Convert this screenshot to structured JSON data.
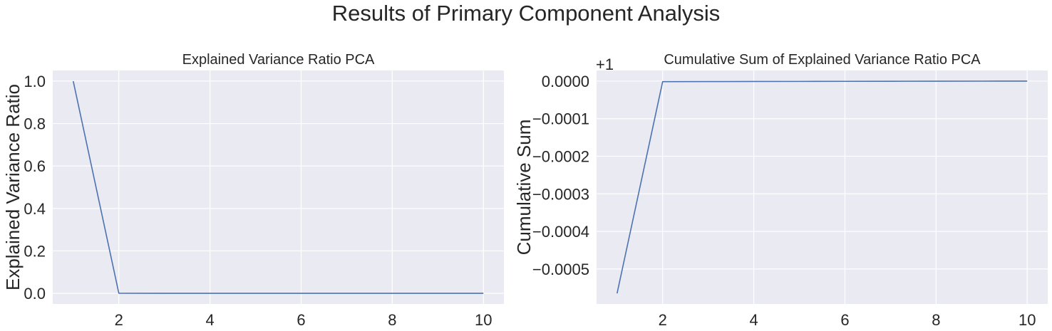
{
  "figure": {
    "suptitle": "Results of Primary Component Analysis"
  },
  "style": {
    "plot_bg": "#eaeaf2",
    "grid_color": "#ffffff",
    "line_color": "#4c72b0",
    "text_color": "#262626"
  },
  "chart_data": [
    {
      "type": "line",
      "title": "Explained Variance Ratio PCA",
      "xlabel": "",
      "ylabel": "Explained Variance Ratio",
      "x": [
        1,
        2,
        3,
        4,
        5,
        6,
        7,
        8,
        9,
        10
      ],
      "series": [
        {
          "values": [
            0.9994,
            0.0005,
            0.0001,
            3e-05,
            1e-05,
            5e-06,
            3e-06,
            2e-06,
            1e-06,
            5e-07
          ]
        }
      ],
      "xlim": [
        0.55,
        10.45
      ],
      "ylim": [
        -0.05,
        1.05
      ],
      "xticks": [
        2,
        4,
        6,
        8,
        10
      ],
      "xtick_labels": [
        "2",
        "4",
        "6",
        "8",
        "10"
      ],
      "yticks": [
        0.0,
        0.2,
        0.4,
        0.6,
        0.8,
        1.0
      ],
      "ytick_labels": [
        "0.0",
        "0.2",
        "0.4",
        "0.6",
        "0.8",
        "1.0"
      ],
      "offset_text": "",
      "grid": true
    },
    {
      "type": "line",
      "title": "Cumulative Sum of Explained Variance Ratio PCA",
      "xlabel": "",
      "ylabel": "Cumulative Sum",
      "x": [
        1,
        2,
        3,
        4,
        5,
        6,
        7,
        8,
        9,
        10
      ],
      "series": [
        {
          "values": [
            -0.000565,
            -1.5e-06,
            -1.2e-06,
            -1e-06,
            -8e-07,
            -6e-07,
            -4e-07,
            -2e-07,
            -1e-07,
            0.0
          ]
        }
      ],
      "xlim": [
        0.55,
        10.45
      ],
      "ylim": [
        -0.000593,
        2.83e-05
      ],
      "xticks": [
        2,
        4,
        6,
        8,
        10
      ],
      "xtick_labels": [
        "2",
        "4",
        "6",
        "8",
        "10"
      ],
      "yticks": [
        0.0,
        -0.0001,
        -0.0002,
        -0.0003,
        -0.0004,
        -0.0005
      ],
      "ytick_labels": [
        "0.0000",
        "−0.0001",
        "−0.0002",
        "−0.0003",
        "−0.0004",
        "−0.0005"
      ],
      "offset_text": "+1",
      "grid": true
    }
  ]
}
